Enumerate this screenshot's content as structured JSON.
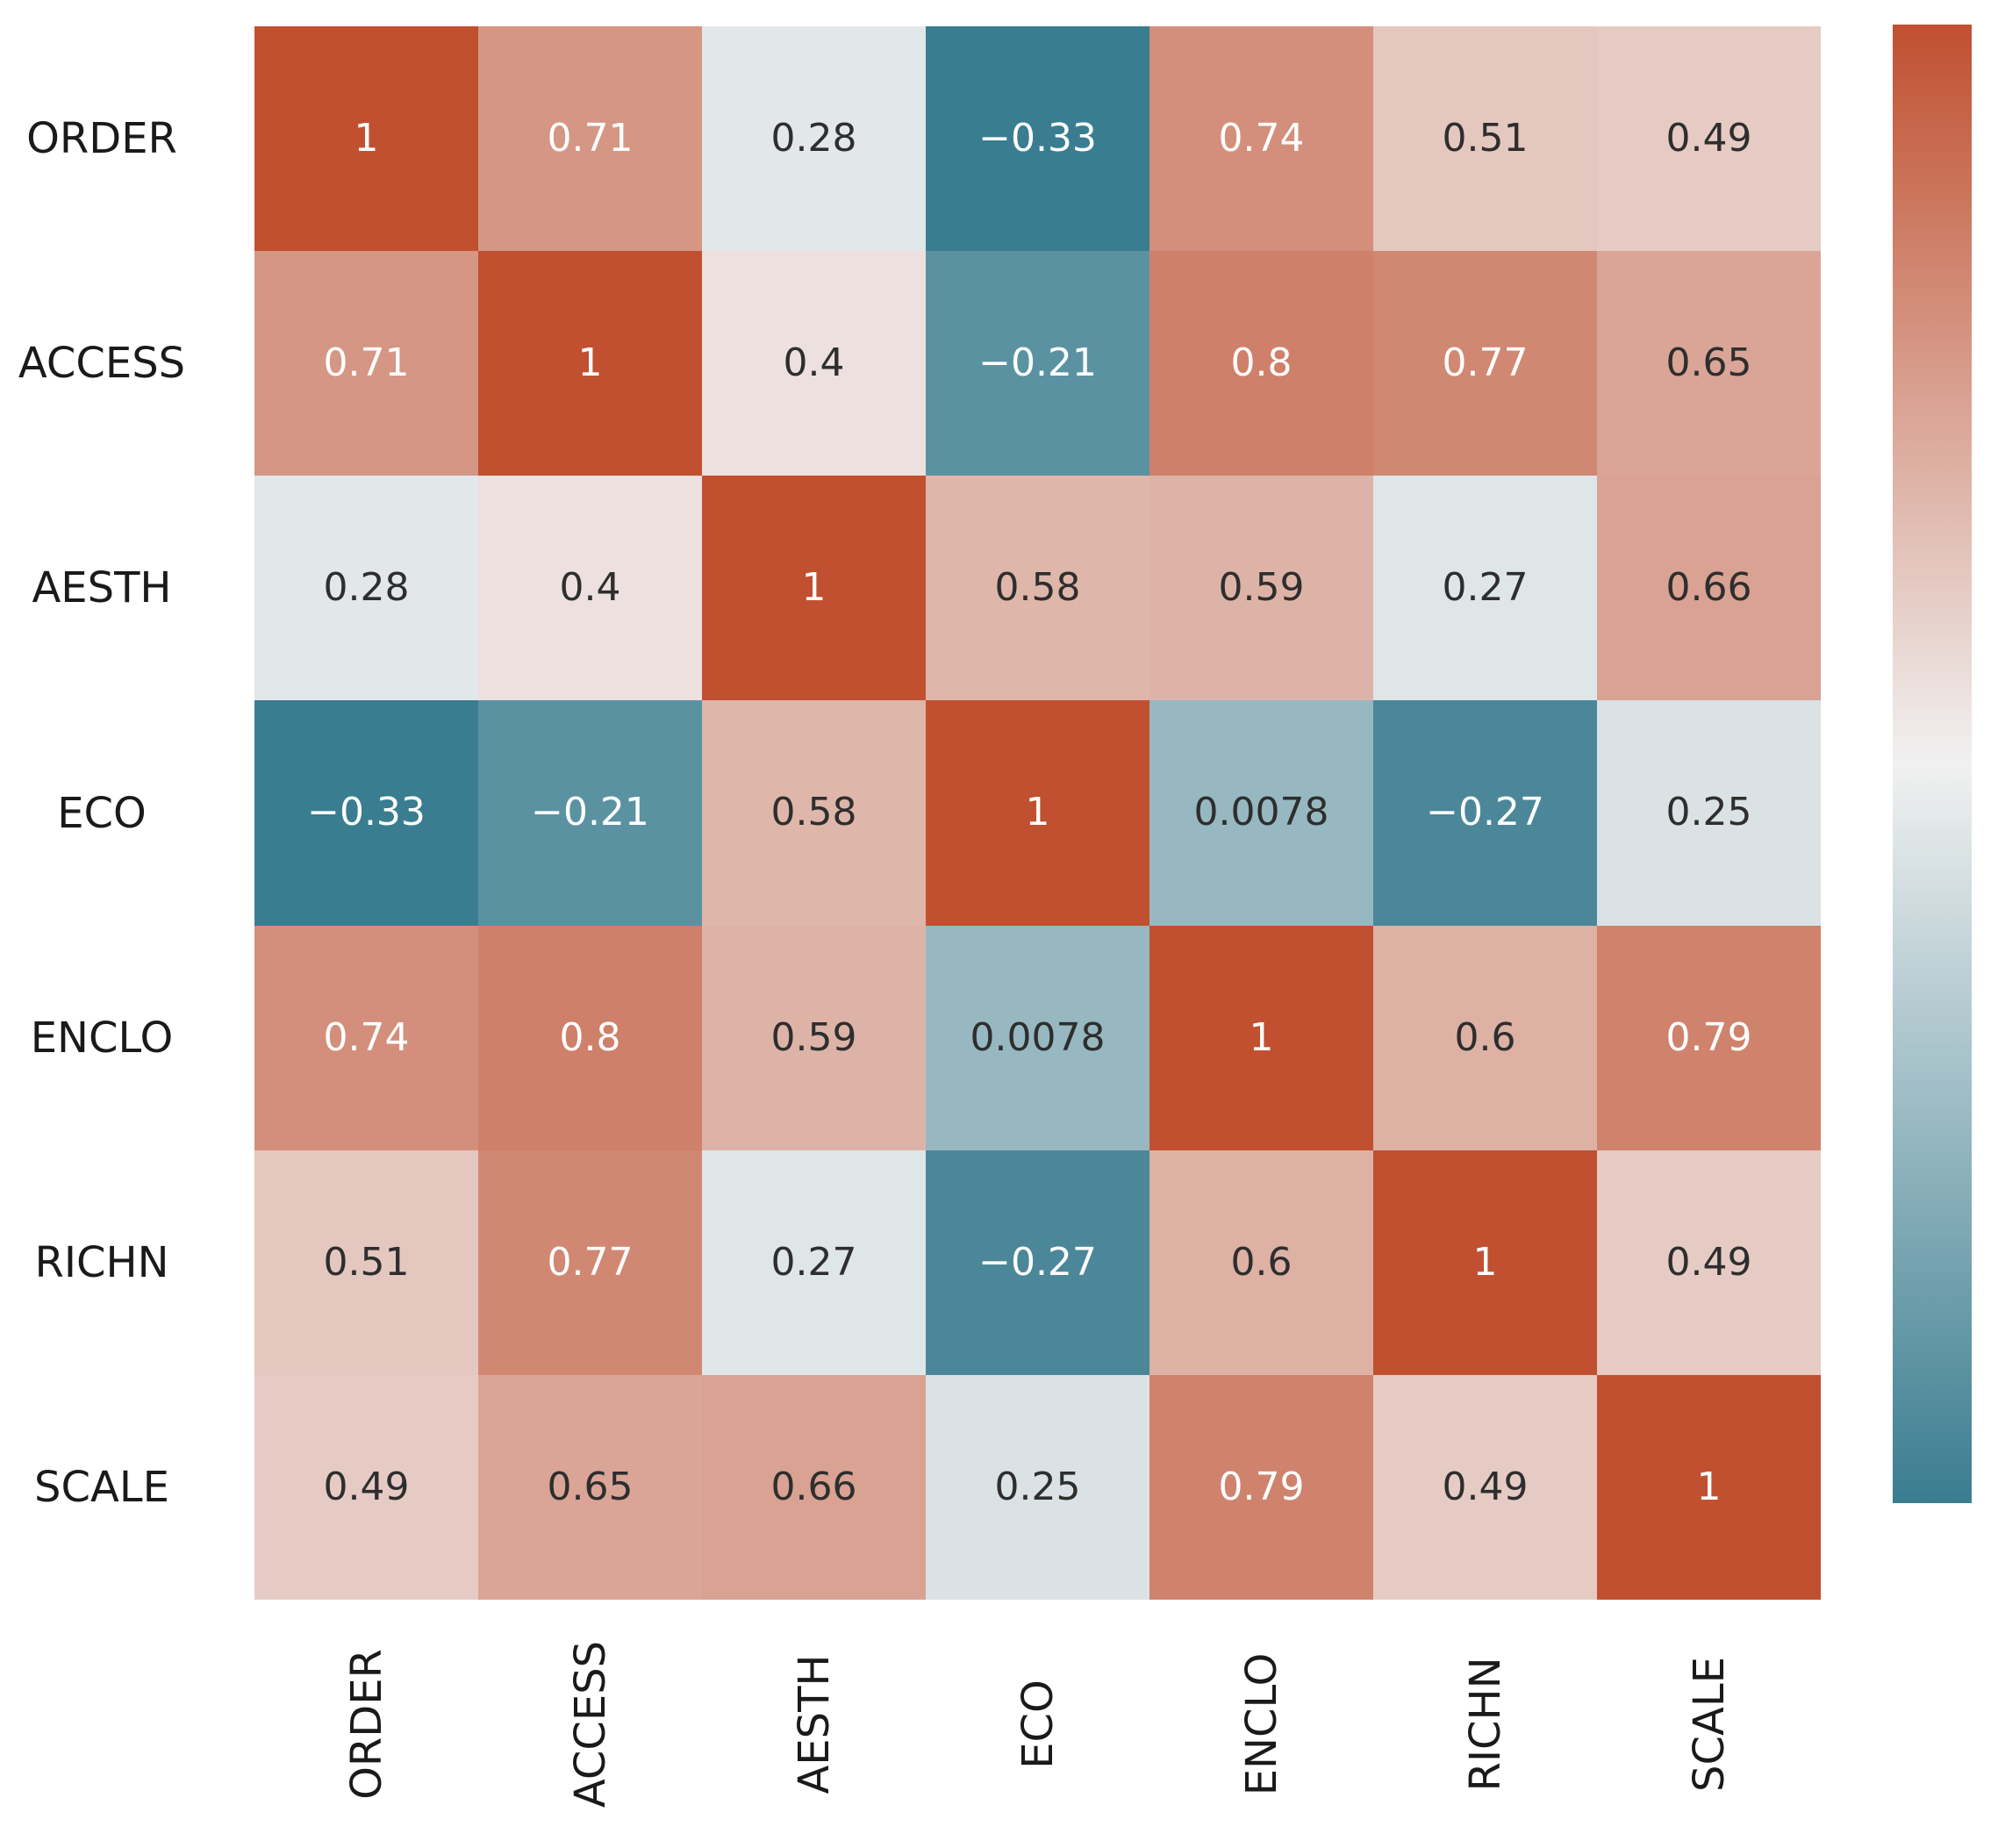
{
  "figure": {
    "background": "#ffffff"
  },
  "chart_data": {
    "type": "heatmap",
    "title": "",
    "categories": [
      "ORDER",
      "ACCESS",
      "AESTH",
      "ECO",
      "ENCLO",
      "RICHN",
      "SCALE"
    ],
    "row_labels": [
      "ORDER",
      "ACCESS",
      "AESTH",
      "ECO",
      "ENCLO",
      "RICHN",
      "SCALE"
    ],
    "col_labels": [
      "ORDER",
      "ACCESS",
      "AESTH",
      "ECO",
      "ENCLO",
      "RICHN",
      "SCALE"
    ],
    "matrix": [
      [
        "1",
        "0.71",
        "0.28",
        "−0.33",
        "0.74",
        "0.51",
        "0.49"
      ],
      [
        "0.71",
        "1",
        "0.4",
        "−0.21",
        "0.8",
        "0.77",
        "0.65"
      ],
      [
        "0.28",
        "0.4",
        "1",
        "0.58",
        "0.59",
        "0.27",
        "0.66"
      ],
      [
        "−0.33",
        "−0.21",
        "0.58",
        "1",
        "0.0078",
        "−0.27",
        "0.25"
      ],
      [
        "0.74",
        "0.8",
        "0.59",
        "0.0078",
        "1",
        "0.6",
        "0.79"
      ],
      [
        "0.51",
        "0.77",
        "0.27",
        "−0.27",
        "0.6",
        "1",
        "0.49"
      ],
      [
        "0.49",
        "0.65",
        "0.66",
        "0.25",
        "0.79",
        "0.49",
        "1"
      ]
    ],
    "vmin": -0.33,
    "vmax": 1,
    "center_value": 0.335,
    "colormap": {
      "min_color": "#3a7d90",
      "mid_color": "#f1f1f1",
      "max_color": "#c05030"
    },
    "annotation_colors": {
      "light": "#ffffff",
      "dark": "#2e2e2e",
      "luminance_threshold": 0.408
    },
    "colorbar": {
      "orientation": "vertical",
      "position": "right",
      "tick_labels": []
    },
    "grid": false,
    "legend": false,
    "xlabel": "",
    "ylabel": ""
  }
}
